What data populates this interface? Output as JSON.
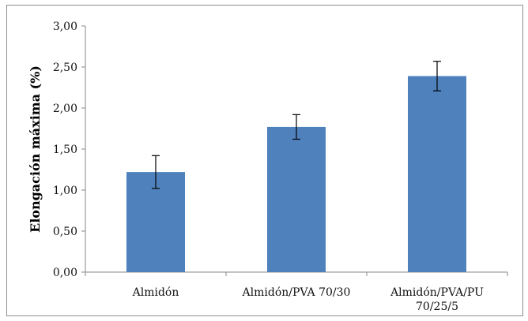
{
  "chart_data": {
    "type": "bar",
    "categories": [
      [
        "Almidón"
      ],
      [
        "Almidón/PVA 70/30"
      ],
      [
        "Almidón/PVA/PU",
        "70/25/5"
      ]
    ],
    "values": [
      1.22,
      1.77,
      2.39
    ],
    "error": [
      0.2,
      0.15,
      0.18
    ],
    "ylabel": "Elongación máxima (%)",
    "xlabel": "",
    "title": "",
    "ylim": [
      0,
      3.0
    ],
    "yticks": [
      "0,00",
      "0,50",
      "1,00",
      "1,50",
      "2,00",
      "2,50",
      "3,00"
    ],
    "grid": false,
    "legend": "none",
    "bar_color": "#4f81bd",
    "axis_color": "#8a8a8a",
    "error_bar_color": "#000000"
  }
}
